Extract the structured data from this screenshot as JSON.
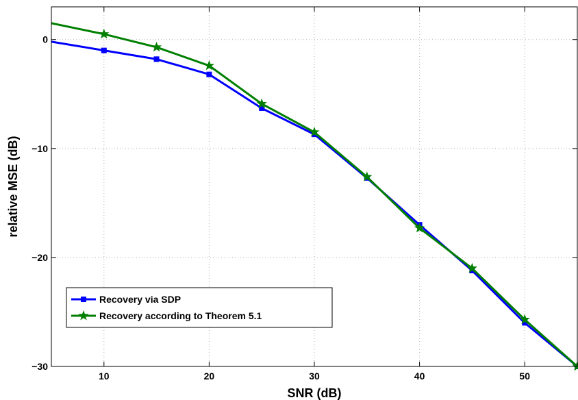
{
  "chart_data": {
    "type": "line",
    "xlabel": "SNR (dB)",
    "ylabel": "relative MSE (dB)",
    "xlim": [
      5,
      55
    ],
    "ylim": [
      -30,
      3
    ],
    "xticks": [
      10,
      20,
      30,
      40,
      50
    ],
    "yticks": [
      0,
      -10,
      -20,
      -30
    ],
    "grid": true,
    "legend_position": "bottom-left",
    "series": [
      {
        "name": "Recovery via SDP",
        "color": "#0000ff",
        "marker": "square",
        "x": [
          5,
          10,
          15,
          20,
          25,
          30,
          35,
          40,
          45,
          50,
          55
        ],
        "y": [
          -0.2,
          -1.0,
          -1.8,
          -3.2,
          -6.3,
          -8.7,
          -12.7,
          -17.0,
          -21.2,
          -26.0,
          -30.0
        ]
      },
      {
        "name": "Recovery according to Theorem 5.1",
        "color": "#007f00",
        "marker": "star",
        "x": [
          5,
          10,
          15,
          20,
          25,
          30,
          35,
          40,
          45,
          50,
          55
        ],
        "y": [
          1.5,
          0.5,
          -0.7,
          -2.4,
          -5.9,
          -8.5,
          -12.6,
          -17.3,
          -21.0,
          -25.7,
          -30.0
        ]
      }
    ]
  }
}
